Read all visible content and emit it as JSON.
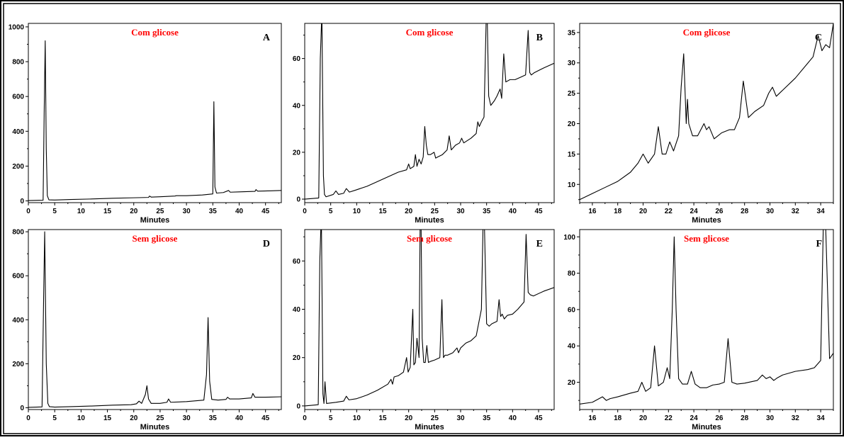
{
  "chart_data": [
    {
      "type": "line",
      "letter": "A",
      "title": "Com glicose",
      "xlabel": "Minutes",
      "ylabel": "",
      "xlim": [
        0,
        48
      ],
      "ylim": [
        -10,
        1020
      ],
      "xticks": [
        0,
        5,
        10,
        15,
        20,
        25,
        30,
        35,
        40,
        45
      ],
      "yticks": [
        0,
        200,
        400,
        600,
        800,
        1000
      ],
      "xlabel_shown": true,
      "series": [
        {
          "x": [
            0,
            2.8,
            3.0,
            3.2,
            3.4,
            3.6,
            3.9,
            5,
            8,
            12,
            16,
            20,
            22.8,
            23.0,
            23.3,
            25,
            27.8,
            28.1,
            30,
            33,
            35.0,
            35.2,
            35.4,
            35.7,
            37,
            38.0,
            38.3,
            40,
            43.0,
            43.2,
            43.5,
            46,
            48
          ],
          "y": [
            2,
            4,
            500,
            920,
            300,
            30,
            6,
            5,
            8,
            11,
            15,
            18,
            20,
            28,
            22,
            24,
            28,
            30,
            30,
            34,
            40,
            570,
            80,
            45,
            48,
            60,
            50,
            52,
            55,
            65,
            56,
            58,
            60
          ]
        }
      ]
    },
    {
      "type": "line",
      "letter": "B",
      "title": "Com glicose",
      "xlabel": "Minutes",
      "ylabel": "",
      "xlim": [
        0,
        48
      ],
      "ylim": [
        -1.5,
        75
      ],
      "xticks": [
        0,
        5,
        10,
        15,
        20,
        25,
        30,
        35,
        40,
        45
      ],
      "yticks": [
        0,
        20,
        40,
        60
      ],
      "xlabel_shown": true,
      "series": [
        {
          "x": [
            0,
            2.7,
            3.0,
            3.3,
            3.6,
            3.8,
            4.1,
            5.5,
            6.0,
            6.5,
            7.5,
            8.0,
            8.6,
            10,
            12,
            14,
            16,
            18,
            19.6,
            20.0,
            20.3,
            21.0,
            21.3,
            21.6,
            22.0,
            22.4,
            22.8,
            23.1,
            23.4,
            23.7,
            24.2,
            24.9,
            25.2,
            25.6,
            26.5,
            27.4,
            27.8,
            28.2,
            29.0,
            29.8,
            30.2,
            30.6,
            32,
            33.0,
            33.3,
            33.6,
            34.0,
            34.5,
            34.9,
            35.1,
            35.4,
            35.8,
            36.5,
            37.0,
            37.6,
            37.9,
            38.3,
            38.7,
            39.5,
            40.5,
            41.5,
            42.5,
            43.0,
            43.3,
            43.6,
            44.2,
            46,
            48
          ],
          "y": [
            0,
            0.5,
            60,
            80,
            10,
            2,
            1,
            2,
            3.5,
            2,
            2.5,
            4.5,
            3,
            4,
            5.5,
            7.5,
            9.5,
            11.5,
            12.5,
            15,
            13,
            14,
            19,
            14,
            17,
            15,
            18,
            31,
            23,
            19,
            19,
            20,
            17.5,
            18,
            19,
            21,
            27,
            21,
            23,
            24,
            26,
            24,
            26,
            28,
            33,
            31,
            33,
            35,
            75,
            80,
            44,
            40,
            42,
            44,
            47,
            43,
            62,
            50,
            51,
            51,
            52,
            53,
            72,
            54,
            53,
            54,
            56,
            58
          ]
        }
      ]
    },
    {
      "type": "line",
      "letter": "C",
      "title": "Com glicose",
      "xlabel": "Minutes",
      "ylabel": "",
      "xlim": [
        15,
        35
      ],
      "ylim": [
        7,
        36.5
      ],
      "xticks": [
        16,
        18,
        20,
        22,
        24,
        26,
        28,
        30,
        32,
        34
      ],
      "yticks": [
        10,
        15,
        20,
        25,
        30,
        35
      ],
      "xlabel_shown": true,
      "series": [
        {
          "x": [
            15,
            16,
            17,
            18,
            19,
            19.6,
            20.0,
            20.4,
            20.9,
            21.2,
            21.5,
            21.8,
            22.1,
            22.4,
            22.8,
            23.0,
            23.2,
            23.4,
            23.5,
            23.6,
            23.9,
            24.3,
            24.8,
            25.0,
            25.2,
            25.6,
            26.2,
            26.8,
            27.2,
            27.6,
            27.9,
            28.3,
            28.8,
            29.5,
            29.9,
            30.2,
            30.5,
            31,
            32,
            33,
            33.4,
            33.8,
            34.1,
            34.4,
            34.7,
            35.0
          ],
          "y": [
            7.5,
            8.5,
            9.5,
            10.5,
            12,
            13.5,
            15,
            13.5,
            15,
            19.5,
            15,
            15,
            17,
            15.5,
            18,
            26,
            31.5,
            20,
            24,
            20,
            18,
            18,
            20,
            19,
            19.5,
            17.5,
            18.5,
            19,
            19,
            21,
            27,
            21,
            22,
            23,
            25,
            26,
            24.5,
            25.5,
            27.5,
            30,
            31,
            34.5,
            32,
            33,
            32.5,
            36.5
          ]
        }
      ]
    },
    {
      "type": "line",
      "letter": "D",
      "title": "Sem glicose",
      "xlabel": "Minutes",
      "ylabel": "",
      "xlim": [
        0,
        48
      ],
      "ylim": [
        -8,
        810
      ],
      "xticks": [
        0,
        5,
        10,
        15,
        20,
        25,
        30,
        35,
        40,
        45
      ],
      "yticks": [
        0,
        200,
        400,
        600,
        800
      ],
      "xlabel_shown": true,
      "series": [
        {
          "x": [
            0,
            2.6,
            2.9,
            3.1,
            3.4,
            3.7,
            4.0,
            5,
            8,
            12,
            16,
            19.5,
            20.5,
            21.0,
            21.5,
            22.2,
            22.5,
            22.8,
            23.3,
            25,
            26.3,
            26.6,
            27.0,
            30,
            33.3,
            33.8,
            34.1,
            34.4,
            34.8,
            36,
            37.5,
            37.8,
            38.2,
            40,
            42.3,
            42.6,
            43.0,
            45,
            48
          ],
          "y": [
            2,
            4,
            500,
            800,
            200,
            20,
            5,
            3,
            5,
            8,
            12,
            14,
            18,
            30,
            20,
            60,
            100,
            40,
            20,
            20,
            25,
            40,
            25,
            28,
            35,
            150,
            410,
            120,
            38,
            35,
            38,
            48,
            40,
            40,
            45,
            65,
            48,
            48,
            50
          ]
        }
      ]
    },
    {
      "type": "line",
      "letter": "E",
      "title": "Sem glicose",
      "xlabel": "Minutes",
      "ylabel": "",
      "xlim": [
        0,
        48
      ],
      "ylim": [
        -1.5,
        73
      ],
      "xticks": [
        0,
        5,
        10,
        15,
        20,
        25,
        30,
        35,
        40,
        45
      ],
      "yticks": [
        0,
        20,
        40,
        60
      ],
      "xlabel_shown": true,
      "series": [
        {
          "x": [
            0,
            2.6,
            2.9,
            3.2,
            3.5,
            3.7,
            3.9,
            4.2,
            6,
            7.5,
            8.0,
            8.5,
            10,
            12,
            14,
            16,
            16.6,
            16.9,
            17.2,
            18,
            19,
            19.6,
            19.9,
            20.3,
            20.8,
            21.0,
            21.3,
            21.6,
            22.0,
            22.2,
            22.4,
            22.6,
            22.9,
            23.2,
            23.5,
            23.8,
            24.3,
            25,
            26,
            26.4,
            26.7,
            27.0,
            27.5,
            28.5,
            29.3,
            29.6,
            30.0,
            31,
            32,
            33,
            34.0,
            34.3,
            34.6,
            35.0,
            35.5,
            36,
            37,
            37.4,
            37.7,
            38.0,
            38.4,
            39,
            40,
            41,
            42.2,
            42.6,
            43.0,
            43.4,
            44,
            46,
            48
          ],
          "y": [
            0,
            0.5,
            60,
            80,
            5,
            1,
            10,
            1,
            1.5,
            2,
            4,
            2.5,
            3,
            4.5,
            6.5,
            9,
            11,
            9,
            12,
            12.5,
            14,
            20,
            14,
            16,
            40,
            17,
            18,
            28,
            20,
            73,
            73,
            28,
            18,
            18,
            25,
            18,
            18.5,
            19,
            20,
            44,
            20,
            21,
            21,
            22,
            24,
            22,
            24,
            26,
            27,
            29,
            40,
            73,
            73,
            34,
            33,
            34,
            35,
            44,
            37,
            38,
            36,
            37.5,
            38,
            40,
            43,
            71,
            47,
            46,
            45.5,
            47.5,
            49
          ]
        }
      ]
    },
    {
      "type": "line",
      "letter": "F",
      "title": "Sem glicose",
      "xlabel": "Minutes",
      "ylabel": "",
      "xlim": [
        15,
        35
      ],
      "ylim": [
        5,
        104
      ],
      "xticks": [
        16,
        18,
        20,
        22,
        24,
        26,
        28,
        30,
        32,
        34
      ],
      "yticks": [
        20,
        40,
        60,
        80,
        100
      ],
      "xlabel_shown": true,
      "series": [
        {
          "x": [
            15,
            16,
            16.8,
            17.1,
            17.4,
            18,
            19,
            19.6,
            19.9,
            20.2,
            20.6,
            20.9,
            21.2,
            21.6,
            21.9,
            22.1,
            22.3,
            22.45,
            22.6,
            22.8,
            23.1,
            23.5,
            23.8,
            24.1,
            24.5,
            25,
            25.5,
            26,
            26.4,
            26.7,
            27.0,
            27.4,
            28,
            29,
            29.4,
            29.7,
            30.0,
            30.3,
            30.6,
            31,
            32,
            33,
            33.5,
            34.0,
            34.2,
            34.4,
            34.7,
            35.0
          ],
          "y": [
            8,
            9,
            12,
            10,
            11,
            12,
            14,
            15,
            20,
            15,
            17,
            40,
            18,
            20,
            28,
            22,
            60,
            100,
            60,
            22,
            19,
            19,
            26,
            19,
            17,
            17,
            18.5,
            19,
            20,
            44,
            20,
            19,
            19.5,
            21,
            24,
            22,
            23,
            21,
            22.5,
            24,
            26,
            27,
            28,
            32,
            104,
            104,
            33,
            36
          ]
        }
      ]
    }
  ]
}
